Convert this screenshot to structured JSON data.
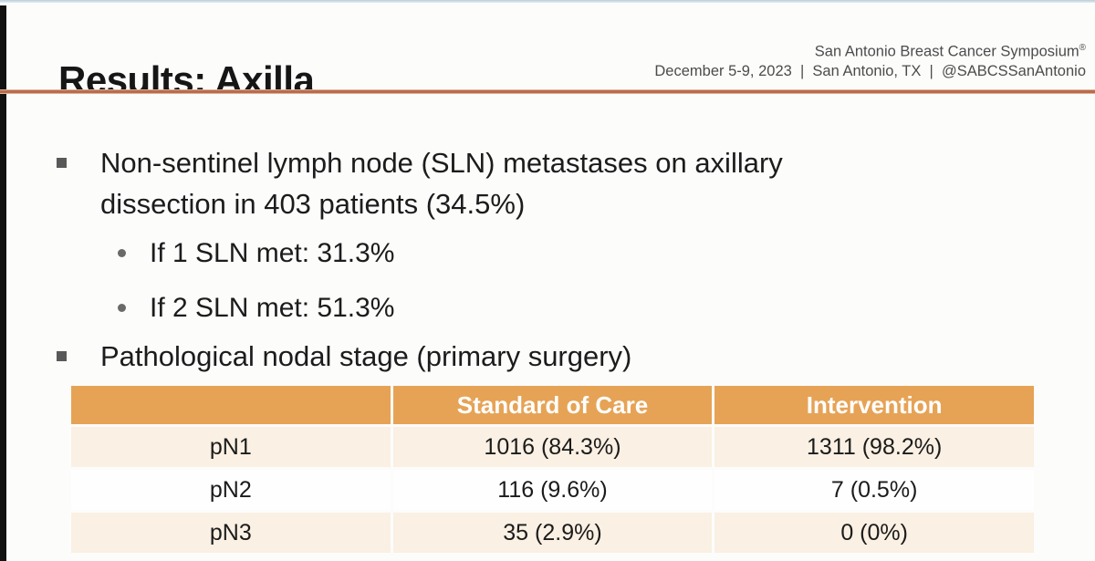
{
  "slide": {
    "title": "Results: Axilla",
    "header": {
      "conference_name": "San Antonio Breast Cancer Symposium",
      "registered_mark": "®",
      "details": "December 5-9, 2023  |  San Antonio, TX  |  @SABCSSanAntonio"
    },
    "content": {
      "bullet_1": "Non-sentinel lymph node (SLN) metastases on axillary dissection in 403 patients (34.5%)",
      "sub_bullet_1": "If 1 SLN met: 31.3%",
      "sub_bullet_2": "If 2 SLN met: 51.3%",
      "bullet_2": "Pathological nodal stage (primary surgery)"
    },
    "colors": {
      "table_header_bg": "#e6a356",
      "table_alt_row_bg": "#faf0e3",
      "divider_line": "#b86c4c",
      "table_header_text": "#ffffff"
    }
  },
  "chart_data": {
    "type": "table",
    "title": "Pathological nodal stage (primary surgery)",
    "columns": [
      "",
      "Standard of Care",
      "Intervention"
    ],
    "rows": [
      [
        "pN1",
        "1016 (84.3%)",
        "1311 (98.2%)"
      ],
      [
        "pN2",
        "116 (9.6%)",
        "7 (0.5%)"
      ],
      [
        "pN3",
        "35 (2.9%)",
        "0 (0%)"
      ]
    ]
  }
}
